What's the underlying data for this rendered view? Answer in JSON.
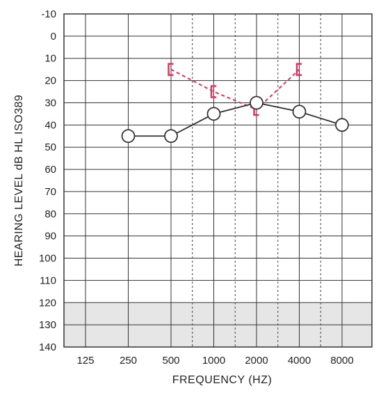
{
  "chart_data": {
    "type": "scatter",
    "title": "",
    "xlabel": "FREQUENCY (HZ)",
    "ylabel": "HEARING LEVEL dB HL ISO389",
    "x_categories": [
      "125",
      "250",
      "500",
      "1000",
      "2000",
      "4000",
      "8000"
    ],
    "y_ticks": [
      -10,
      0,
      10,
      20,
      30,
      40,
      50,
      60,
      70,
      80,
      90,
      100,
      110,
      120,
      130,
      140
    ],
    "ylim": [
      -10,
      140
    ],
    "y_inverted": true,
    "shaded_region": {
      "from": 120,
      "to": 140,
      "color": "#e6e6e6"
    },
    "grid": true,
    "series": [
      {
        "marker": "circle",
        "color": "#333333",
        "line_style": "solid",
        "points": [
          {
            "x": "250",
            "y": 45
          },
          {
            "x": "500",
            "y": 45
          },
          {
            "x": "1000",
            "y": 35
          },
          {
            "x": "2000",
            "y": 30
          },
          {
            "x": "4000",
            "y": 34
          },
          {
            "x": "8000",
            "y": 40
          }
        ]
      },
      {
        "marker": "bracket",
        "color": "#e8305a",
        "line_style": "dashed",
        "points": [
          {
            "x": "500",
            "y": 15
          },
          {
            "x": "1000",
            "y": 25
          },
          {
            "x": "2000",
            "y": 33
          },
          {
            "x": "4000",
            "y": 15
          }
        ]
      }
    ]
  }
}
